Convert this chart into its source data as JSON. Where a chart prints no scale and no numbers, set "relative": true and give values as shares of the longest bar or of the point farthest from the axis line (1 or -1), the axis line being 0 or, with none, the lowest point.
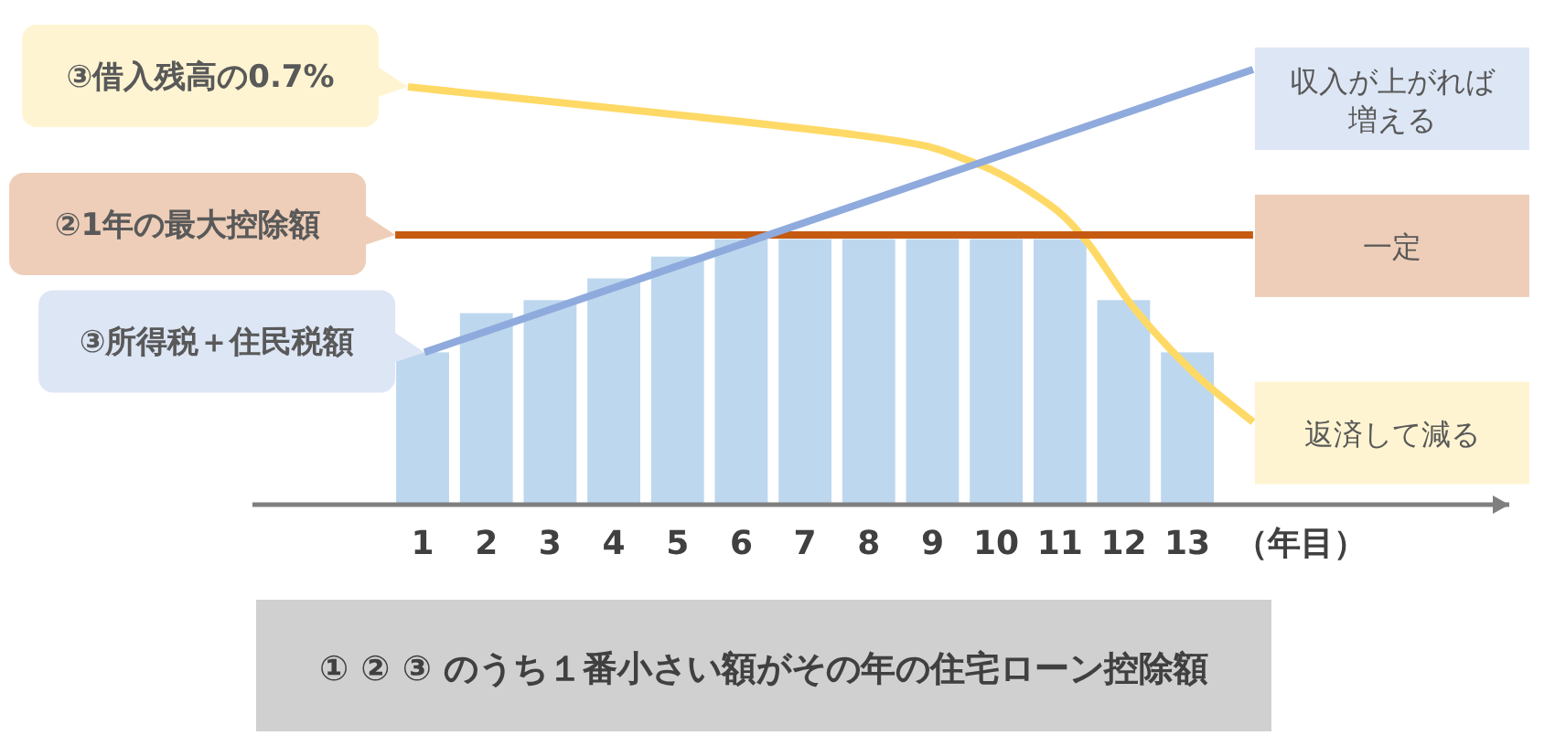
{
  "chart_data": {
    "type": "bar",
    "relative": true,
    "xlabel": "（年目）",
    "x": [
      1,
      2,
      3,
      4,
      5,
      6,
      7,
      8,
      9,
      10,
      11,
      12,
      13
    ],
    "xlim": [
      -1.67,
      18.05
    ],
    "xticks": [
      1,
      2,
      3,
      4,
      5,
      6,
      7,
      8,
      9,
      10,
      11,
      12,
      13
    ],
    "series": [
      {
        "color": "#bdd7ee",
        "values": [
          0.35,
          0.44,
          0.47,
          0.52,
          0.57,
          0.61,
          0.61,
          0.61,
          0.61,
          0.61,
          0.61,
          0.47,
          0.35
        ]
      },
      {
        "type": "line",
        "name": "③借入残高の0.7%",
        "color": "#ffd966",
        "x": [
          0.77,
          7.78,
          9.58,
          10.73,
          11.39,
          12.17,
          13.12,
          14.03
        ],
        "values": [
          0.96,
          0.85,
          0.79,
          0.7,
          0.61,
          0.45,
          0.3,
          0.19
        ]
      },
      {
        "type": "line",
        "name": "②1年の最大控除額",
        "color": "#c55a11",
        "x": [
          0.57,
          14.03
        ],
        "values": [
          0.62,
          0.62
        ]
      },
      {
        "type": "line",
        "name": "③所得税＋住民税額",
        "color": "#8faadc",
        "x": [
          1.03,
          14.03
        ],
        "values": [
          0.35,
          1
        ]
      }
    ],
    "annotations": [
      "収入が上がれば増える",
      "一定",
      "返済して減る",
      "① ② ③ のうち１番小さい額がその年の住宅ローン控除額"
    ]
  }
}
